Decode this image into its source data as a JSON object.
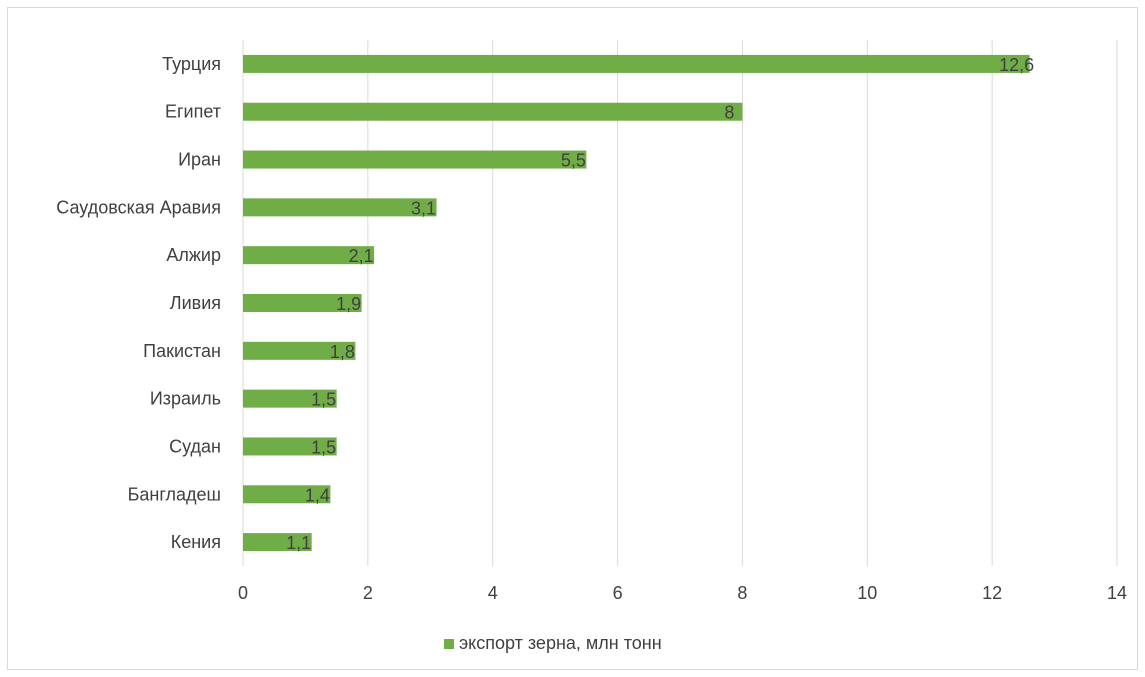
{
  "chart_data": {
    "type": "bar",
    "orientation": "horizontal",
    "title": "",
    "xlabel": "",
    "ylabel": "",
    "categories": [
      "Турция",
      "Египет",
      "Иран",
      "Саудовская Аравия",
      "Алжир",
      "Ливия",
      "Пакистан",
      "Израиль",
      "Судан",
      "Бангладеш",
      "Кения"
    ],
    "series": [
      {
        "name": "экспорт зерна, млн тонн",
        "color": "#70ad47",
        "values": [
          12.6,
          8,
          5.5,
          3.1,
          2.1,
          1.9,
          1.8,
          1.5,
          1.5,
          1.4,
          1.1
        ],
        "value_labels": [
          "12,6",
          "8",
          "5,5",
          "3,1",
          "2,1",
          "1,9",
          "1,8",
          "1,5",
          "1,5",
          "1,4",
          "1,1"
        ]
      }
    ],
    "xlim": [
      0,
      14
    ],
    "x_ticks": [
      0,
      2,
      4,
      6,
      8,
      10,
      12,
      14
    ],
    "grid": true,
    "grid_color": "#d9d9d9",
    "legend_position": "bottom"
  }
}
